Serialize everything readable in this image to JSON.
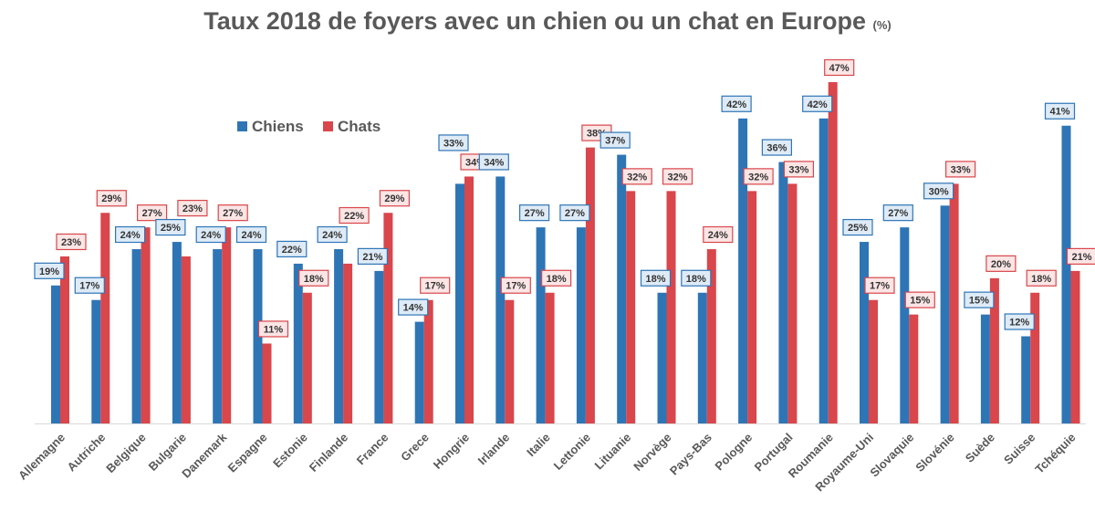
{
  "chart_data": {
    "type": "bar",
    "title": "Taux 2018 de foyers avec un chien ou un chat en Europe",
    "title_unit": "(%)",
    "categories": [
      "Allemagne",
      "Autriche",
      "Belgique",
      "Bulgarie",
      "Danemark",
      "Espagne",
      "Estonie",
      "Finlande",
      "France",
      "Grece",
      "Hongrie",
      "Irlande",
      "Italie",
      "Lettonie",
      "Lituanie",
      "Norvège",
      "Pays-Bas",
      "Pologne",
      "Portugal",
      "Roumanie",
      "Royaume-Uni",
      "Slovaquie",
      "Slovénie",
      "Suède",
      "Suisse",
      "Tchéquie"
    ],
    "series": [
      {
        "name": "Chiens",
        "color": "#2E75B6",
        "label_bg": "#DEEBF7",
        "values": [
          19,
          17,
          24,
          25,
          24,
          24,
          22,
          24,
          21,
          14,
          33,
          34,
          27,
          27,
          37,
          18,
          18,
          42,
          36,
          42,
          25,
          27,
          30,
          15,
          12,
          41
        ]
      },
      {
        "name": "Chats",
        "color": "#D9464B",
        "label_bg": "#FBE5E5",
        "values": [
          23,
          29,
          27,
          23,
          27,
          11,
          18,
          22,
          29,
          17,
          34,
          17,
          18,
          38,
          32,
          32,
          24,
          32,
          33,
          47,
          17,
          15,
          33,
          20,
          18,
          21
        ]
      }
    ],
    "value_suffix": "%",
    "ylim": [
      0,
      50
    ],
    "grid": false,
    "legend_position": "upper-left"
  }
}
